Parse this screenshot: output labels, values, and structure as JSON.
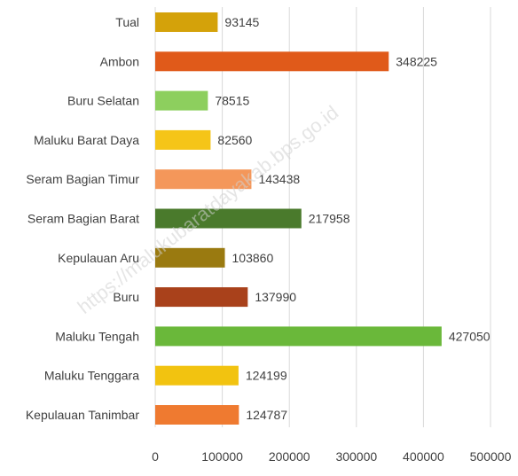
{
  "watermark": "https://malukubaratdayakab.bps.go.id",
  "chart_data": {
    "type": "bar",
    "orientation": "horizontal",
    "title": "",
    "xlabel": "",
    "ylabel": "",
    "categories": [
      "Tual",
      "Ambon",
      "Buru Selatan",
      "Maluku Barat Daya",
      "Seram Bagian Timur",
      "Seram Bagian Barat",
      "Kepulauan Aru",
      "Buru",
      "Maluku Tengah",
      "Maluku Tenggara",
      "Kepulauan Tanimbar"
    ],
    "values": [
      93145,
      348225,
      78515,
      82560,
      143438,
      217958,
      103860,
      137990,
      427050,
      124199,
      124787
    ],
    "value_labels": [
      "93145",
      "348225",
      "78515",
      "82560",
      "143438",
      "217958",
      "103860",
      "137990",
      "427050",
      "124199",
      "124787"
    ],
    "colors": [
      "#d4a20a",
      "#e05a1a",
      "#8dcf5e",
      "#f5c518",
      "#f4975a",
      "#4a7a2c",
      "#9a7a10",
      "#a9411b",
      "#6ab83a",
      "#f2c310",
      "#ef7a30"
    ],
    "xlim": [
      0,
      500000
    ],
    "xticks": [
      0,
      100000,
      200000,
      300000,
      400000,
      500000
    ],
    "xtick_labels": [
      "0",
      "100000",
      "200000",
      "300000",
      "400000",
      "500000"
    ],
    "grid": true,
    "legend": "none"
  }
}
